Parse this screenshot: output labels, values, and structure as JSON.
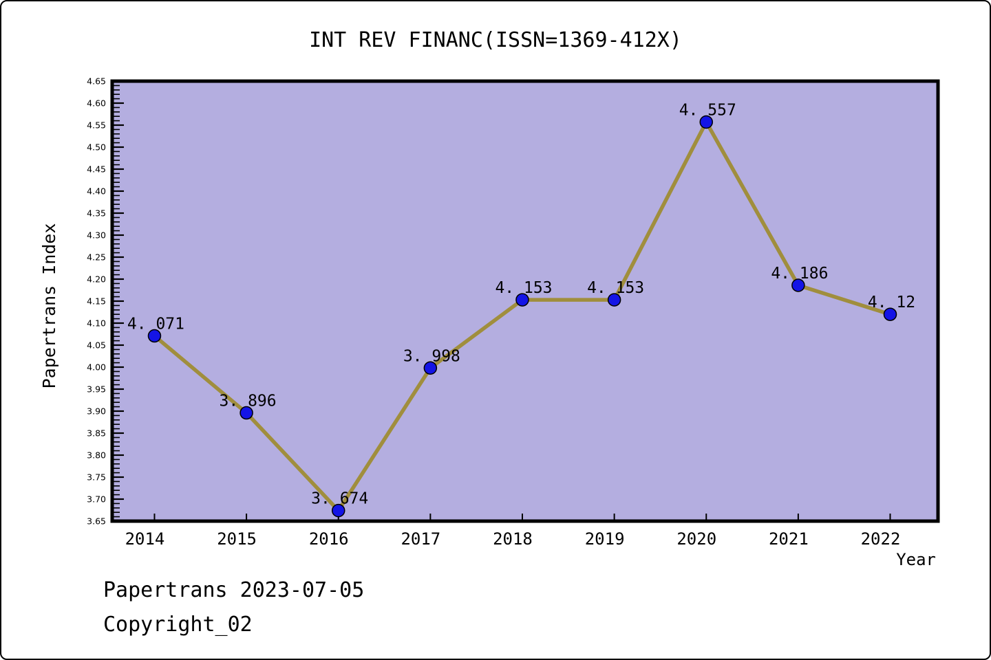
{
  "colors": {
    "plot_background": "#b4aee0",
    "line": "#a08e3d",
    "marker_fill": "#1414e6",
    "marker_edge": "#000000",
    "frame": "#000000",
    "text": "#000000"
  },
  "chart_data": {
    "type": "line",
    "title": "INT REV FINANC(ISSN=1369-412X)",
    "xlabel": "Year",
    "ylabel": "Papertrans Index",
    "series_name": "Papertrans Index",
    "x": [
      2014,
      2015,
      2016,
      2017,
      2018,
      2019,
      2020,
      2021,
      2022
    ],
    "values": [
      4.071,
      3.896,
      3.674,
      3.998,
      4.153,
      4.153,
      4.557,
      4.186,
      4.12
    ],
    "point_labels": [
      "4.071",
      "3.896",
      "3.674",
      "3.998",
      "4.153",
      "4.153",
      "4.557",
      "4.186",
      "4.12"
    ],
    "xlim": [
      2013.54,
      2022.52
    ],
    "ylim": [
      3.65,
      4.65
    ],
    "ytick_step": 0.05,
    "ytick_minor_step": 0.01,
    "grid": false,
    "legend": "none"
  },
  "footer": {
    "line1": "Papertrans 2023-07-05",
    "line2": "Copyright_02"
  }
}
